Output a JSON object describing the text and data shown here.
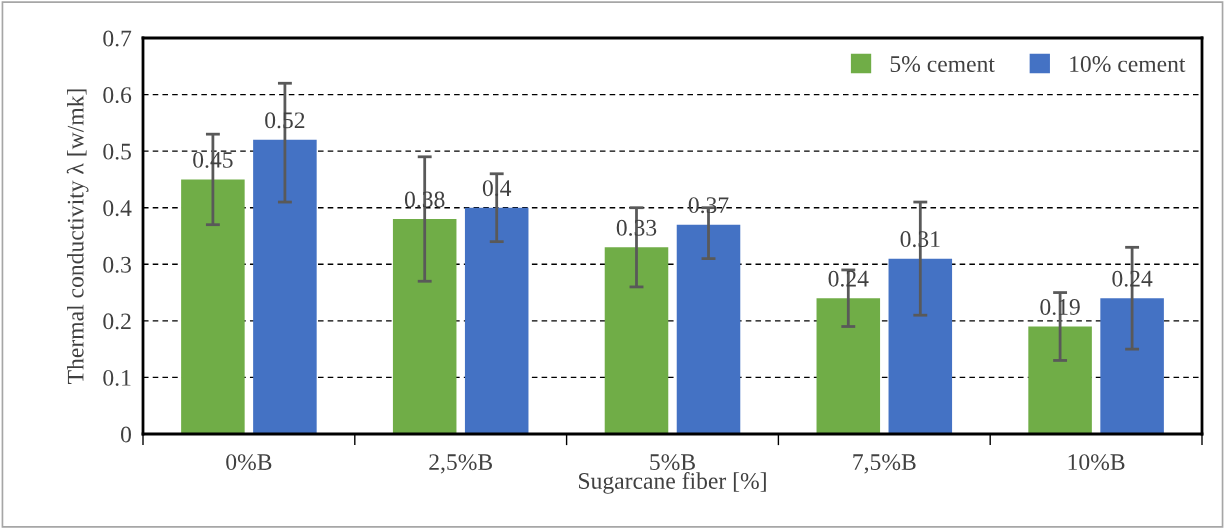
{
  "chart_data": {
    "type": "bar",
    "xlabel": "Sugarcane fiber [%]",
    "ylabel": "Thermal conductivity λ [w/mk]",
    "categories": [
      "0%B",
      "2,5%B",
      "5%B",
      "7,5%B",
      "10%B"
    ],
    "series": [
      {
        "name": "5% cement",
        "color": "#70ad47",
        "values": [
          0.45,
          0.38,
          0.33,
          0.24,
          0.19
        ],
        "errors": [
          [
            0.37,
            0.53
          ],
          [
            0.27,
            0.49
          ],
          [
            0.26,
            0.4
          ],
          [
            0.19,
            0.29
          ],
          [
            0.13,
            0.25
          ]
        ]
      },
      {
        "name": "10% cement",
        "color": "#4472c4",
        "values": [
          0.52,
          0.4,
          0.37,
          0.31,
          0.24
        ],
        "errors": [
          [
            0.41,
            0.62
          ],
          [
            0.34,
            0.46
          ],
          [
            0.31,
            0.4
          ],
          [
            0.21,
            0.41
          ],
          [
            0.15,
            0.33
          ]
        ]
      }
    ],
    "ylim": [
      0,
      0.7
    ],
    "yticks": [
      0,
      0.1,
      0.2,
      0.3,
      0.4,
      0.5,
      0.6,
      0.7
    ],
    "grid": "y",
    "legend": "top right",
    "data_labels": true
  }
}
